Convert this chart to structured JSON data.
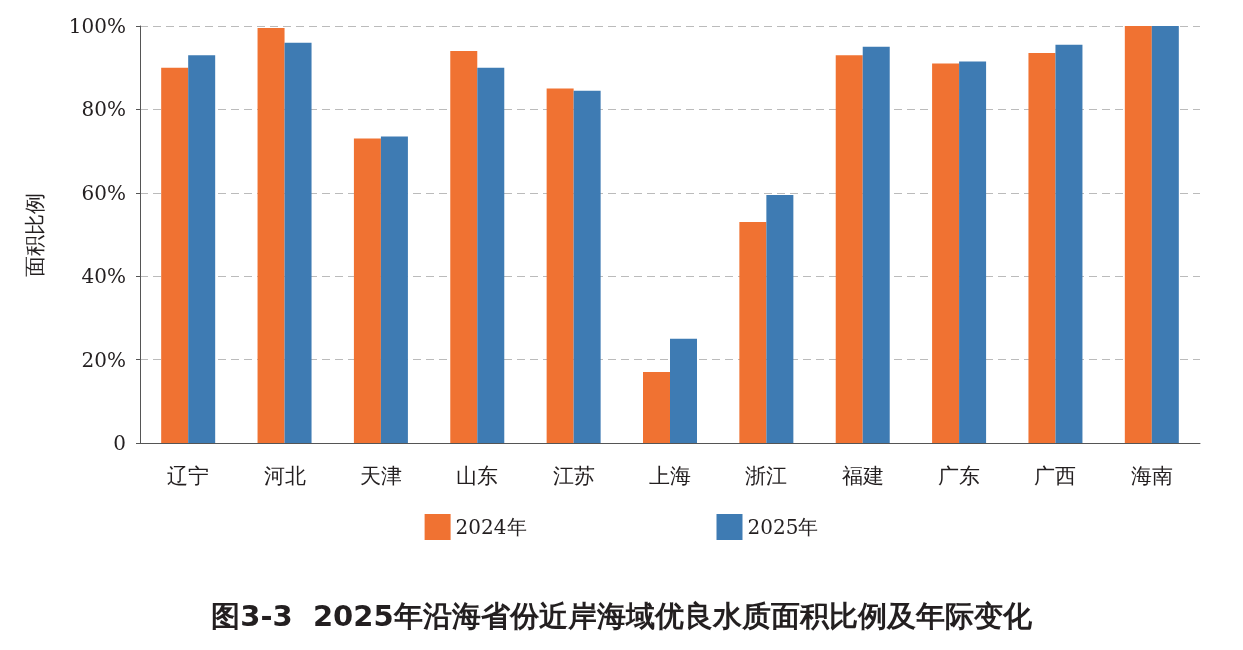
{
  "chart_data": {
    "type": "bar",
    "title": "图3-3  2025年沿海省份近岸海域优良水质面积比例及年际变化",
    "ylabel": "面积比例",
    "categories": [
      "辽宁",
      "河北",
      "天津",
      "山东",
      "江苏",
      "上海",
      "浙江",
      "福建",
      "广东",
      "广西",
      "海南"
    ],
    "series": [
      {
        "name": "2024年",
        "color": "#f07232",
        "values": [
          90,
          99.5,
          73,
          94,
          85,
          17,
          53,
          93,
          91,
          93.5,
          100
        ]
      },
      {
        "name": "2025年",
        "color": "#3e7bb3",
        "values": [
          93,
          96,
          73.5,
          90,
          84.5,
          25,
          59.5,
          95,
          91.5,
          95.5,
          100
        ]
      }
    ],
    "ylim": [
      0,
      100
    ],
    "yticks": [
      {
        "value": 0,
        "label": "0"
      },
      {
        "value": 20,
        "label": "20%"
      },
      {
        "value": 40,
        "label": "40%"
      },
      {
        "value": 60,
        "label": "60%"
      },
      {
        "value": 80,
        "label": "80%"
      },
      {
        "value": 100,
        "label": "100%"
      }
    ],
    "grid": "y",
    "legend": "bottom"
  }
}
